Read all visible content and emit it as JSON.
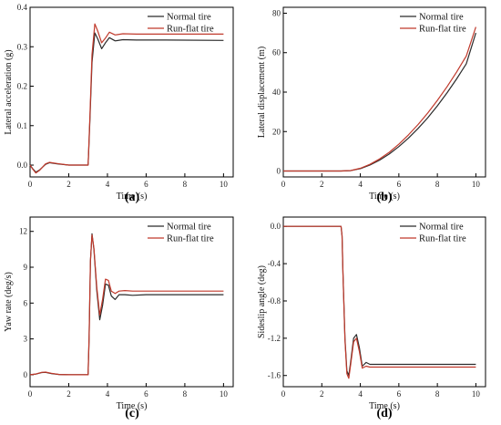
{
  "colors": {
    "normal": "#2b2b2b",
    "runflat": "#c0392b",
    "axis": "#000000"
  },
  "chart_data": [
    {
      "type": "line",
      "panel_label": "(a)",
      "xlabel": "Time (s)",
      "ylabel": "Lateral acceleration (g)",
      "xlim": [
        0,
        10.5
      ],
      "ylim": [
        -0.03,
        0.4
      ],
      "xticks": [
        0,
        2,
        4,
        6,
        8,
        10
      ],
      "yticks": [
        0.0,
        0.1,
        0.2,
        0.3,
        0.4
      ],
      "ytick_labels": [
        "0.0",
        "0.1",
        "0.2",
        "0.3",
        "0.4"
      ],
      "legend_position": "top-right",
      "series": [
        {
          "name": "Normal tire",
          "x": [
            0,
            0.15,
            0.3,
            0.5,
            0.8,
            1.0,
            1.4,
            2.0,
            3.0,
            3.02,
            3.1,
            3.2,
            3.35,
            3.5,
            3.7,
            3.9,
            4.1,
            4.4,
            4.8,
            5.5,
            7,
            10
          ],
          "y": [
            0,
            -0.01,
            -0.018,
            -0.012,
            0.002,
            0.006,
            0.003,
            0,
            0,
            0.02,
            0.12,
            0.26,
            0.335,
            0.32,
            0.295,
            0.31,
            0.323,
            0.315,
            0.318,
            0.317,
            0.317,
            0.316
          ]
        },
        {
          "name": "Run-flat tire",
          "x": [
            0,
            0.15,
            0.3,
            0.5,
            0.8,
            1.0,
            1.4,
            2.0,
            3.0,
            3.02,
            3.1,
            3.2,
            3.35,
            3.5,
            3.7,
            3.9,
            4.1,
            4.4,
            4.8,
            5.5,
            7,
            10
          ],
          "y": [
            0,
            -0.011,
            -0.02,
            -0.013,
            0.003,
            0.007,
            0.004,
            0,
            0,
            0.022,
            0.13,
            0.28,
            0.358,
            0.34,
            0.31,
            0.322,
            0.337,
            0.33,
            0.333,
            0.332,
            0.332,
            0.332
          ]
        }
      ]
    },
    {
      "type": "line",
      "panel_label": "(b)",
      "xlabel": "Time (s)",
      "ylabel": "Lateral displacement (m)",
      "xlim": [
        0,
        10.5
      ],
      "ylim": [
        -3,
        83
      ],
      "xticks": [
        0,
        2,
        4,
        6,
        8,
        10
      ],
      "yticks": [
        0,
        20,
        40,
        60,
        80
      ],
      "ytick_labels": [
        "0",
        "20",
        "40",
        "60",
        "80"
      ],
      "legend_position": "top-right",
      "series": [
        {
          "name": "Normal tire",
          "x": [
            0,
            2,
            3,
            3.5,
            4,
            4.5,
            5,
            5.5,
            6,
            6.5,
            7,
            7.5,
            8,
            8.5,
            9,
            9.5,
            10
          ],
          "y": [
            0,
            0,
            0,
            0.2,
            1.2,
            3.0,
            5.5,
            8.6,
            12.4,
            16.7,
            21.6,
            27.0,
            33.0,
            39.6,
            46.7,
            54.4,
            70.0
          ]
        },
        {
          "name": "Run-flat tire",
          "x": [
            0,
            2,
            3,
            3.5,
            4,
            4.5,
            5,
            5.5,
            6,
            6.5,
            7,
            7.5,
            8,
            8.5,
            9,
            9.5,
            10
          ],
          "y": [
            0,
            0,
            0,
            0.25,
            1.4,
            3.4,
            6.1,
            9.5,
            13.6,
            18.3,
            23.6,
            29.4,
            35.8,
            42.7,
            50.2,
            58.3,
            73.0
          ]
        }
      ]
    },
    {
      "type": "line",
      "panel_label": "(c)",
      "xlabel": "Time (s)",
      "ylabel": "Yaw rate (deg/s)",
      "xlim": [
        0,
        10.5
      ],
      "ylim": [
        -1,
        13.2
      ],
      "xticks": [
        0,
        2,
        4,
        6,
        8,
        10
      ],
      "yticks": [
        0,
        3,
        6,
        9,
        12
      ],
      "ytick_labels": [
        "0",
        "3",
        "6",
        "9",
        "12"
      ],
      "legend_position": "top-right",
      "series": [
        {
          "name": "Normal tire",
          "x": [
            0,
            0.3,
            0.6,
            0.8,
            1.1,
            1.5,
            2,
            3.0,
            3.05,
            3.12,
            3.2,
            3.3,
            3.45,
            3.6,
            3.75,
            3.9,
            4.05,
            4.2,
            4.4,
            4.6,
            4.9,
            5.3,
            6,
            10
          ],
          "y": [
            0,
            0.05,
            0.18,
            0.2,
            0.1,
            0.02,
            0,
            0,
            3.0,
            9.5,
            11.8,
            10.5,
            7.0,
            4.6,
            5.8,
            7.6,
            7.5,
            6.6,
            6.3,
            6.7,
            6.7,
            6.65,
            6.7,
            6.7
          ]
        },
        {
          "name": "Run-flat tire",
          "x": [
            0,
            0.3,
            0.6,
            0.8,
            1.1,
            1.5,
            2,
            3.0,
            3.05,
            3.12,
            3.2,
            3.3,
            3.45,
            3.6,
            3.75,
            3.9,
            4.05,
            4.2,
            4.4,
            4.6,
            4.9,
            5.3,
            6,
            10
          ],
          "y": [
            0,
            0.06,
            0.2,
            0.22,
            0.12,
            0.02,
            0,
            0,
            3.1,
            9.6,
            11.7,
            10.6,
            7.3,
            5.0,
            6.3,
            8.0,
            7.9,
            7.0,
            6.8,
            7.0,
            7.05,
            7.0,
            7.0,
            7.0
          ]
        }
      ]
    },
    {
      "type": "line",
      "panel_label": "(d)",
      "xlabel": "Time (s)",
      "ylabel": "Sideslip angle (deg)",
      "xlim": [
        0,
        10.5
      ],
      "ylim": [
        -1.72,
        0.1
      ],
      "xticks": [
        0,
        2,
        4,
        6,
        8,
        10
      ],
      "yticks": [
        0.0,
        -0.4,
        -0.8,
        -1.2,
        -1.6
      ],
      "ytick_labels": [
        "0.0",
        "-0.4",
        "-0.8",
        "-1.2",
        "-1.6"
      ],
      "legend_position": "top-right",
      "series": [
        {
          "name": "Normal tire",
          "x": [
            0,
            2,
            3.0,
            3.05,
            3.1,
            3.2,
            3.3,
            3.4,
            3.5,
            3.65,
            3.8,
            3.95,
            4.1,
            4.3,
            4.5,
            4.8,
            5.2,
            6,
            10
          ],
          "y": [
            0,
            0,
            0,
            -0.1,
            -0.5,
            -1.2,
            -1.55,
            -1.6,
            -1.45,
            -1.2,
            -1.16,
            -1.3,
            -1.5,
            -1.46,
            -1.48,
            -1.48,
            -1.48,
            -1.48,
            -1.48
          ]
        },
        {
          "name": "Run-flat tire",
          "x": [
            0,
            2,
            3.0,
            3.05,
            3.1,
            3.2,
            3.3,
            3.4,
            3.5,
            3.65,
            3.8,
            3.95,
            4.1,
            4.3,
            4.5,
            4.8,
            5.2,
            6,
            10
          ],
          "y": [
            0,
            0,
            0,
            -0.1,
            -0.5,
            -1.22,
            -1.58,
            -1.63,
            -1.48,
            -1.24,
            -1.2,
            -1.34,
            -1.52,
            -1.5,
            -1.51,
            -1.51,
            -1.51,
            -1.51,
            -1.51
          ]
        }
      ]
    }
  ]
}
